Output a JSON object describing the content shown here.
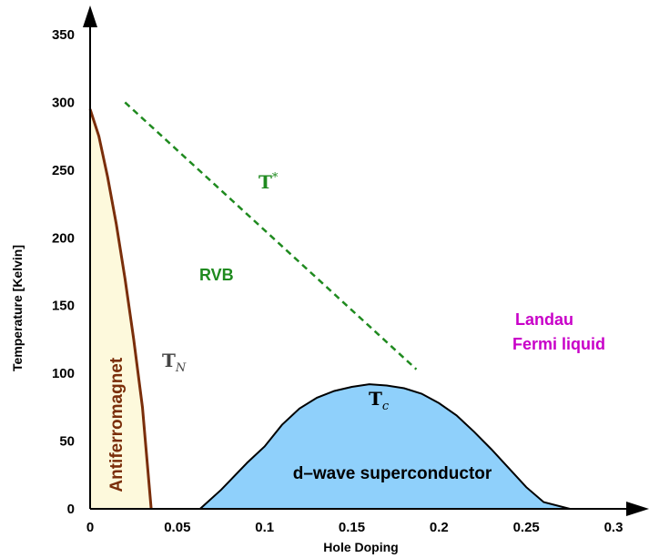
{
  "chart_data": {
    "type": "area",
    "xlabel": "Hole Doping",
    "ylabel": "Temperature [Kelvin]",
    "xlim": [
      0,
      0.3
    ],
    "ylim": [
      0,
      350
    ],
    "x_ticks": [
      "0",
      "0.05",
      "0.1",
      "0.15",
      "0.2",
      "0.25",
      "0.3"
    ],
    "x_tick_values": [
      0,
      0.05,
      0.1,
      0.15,
      0.2,
      0.25,
      0.3
    ],
    "y_ticks": [
      "0",
      "50",
      "100",
      "150",
      "200",
      "250",
      "300",
      "350"
    ],
    "y_tick_values": [
      0,
      50,
      100,
      150,
      200,
      250,
      300,
      350
    ],
    "grid": false,
    "regions": {
      "antiferromagnet": {
        "label": "Antiferromagnet",
        "fill": "#fdf9dc",
        "line_color": "#7a2e0a",
        "boundary": [
          [
            0,
            295
          ],
          [
            0.005,
            275
          ],
          [
            0.01,
            245
          ],
          [
            0.015,
            210
          ],
          [
            0.02,
            170
          ],
          [
            0.025,
            125
          ],
          [
            0.03,
            75
          ],
          [
            0.035,
            0
          ]
        ]
      },
      "superconductor": {
        "label": "d–wave superconductor",
        "fill": "#8fd0fb",
        "line_color": "#000000",
        "boundary": [
          [
            0.063,
            0
          ],
          [
            0.075,
            14
          ],
          [
            0.09,
            34
          ],
          [
            0.1,
            46
          ],
          [
            0.11,
            62
          ],
          [
            0.12,
            74
          ],
          [
            0.13,
            82
          ],
          [
            0.14,
            87
          ],
          [
            0.15,
            90
          ],
          [
            0.16,
            92
          ],
          [
            0.17,
            91
          ],
          [
            0.18,
            89
          ],
          [
            0.19,
            85
          ],
          [
            0.2,
            78
          ],
          [
            0.21,
            69
          ],
          [
            0.22,
            57
          ],
          [
            0.23,
            44
          ],
          [
            0.24,
            30
          ],
          [
            0.25,
            16
          ],
          [
            0.26,
            5
          ],
          [
            0.275,
            0
          ]
        ]
      }
    },
    "lines": {
      "t_star": {
        "label": "T*",
        "color": "#1f8a1f",
        "style": "dashed",
        "points": [
          [
            0.02,
            300
          ],
          [
            0.187,
            103
          ]
        ]
      }
    },
    "annotations": {
      "tn": "T",
      "tn_sub": "N",
      "tc": "T",
      "tc_sub": "c",
      "tstar": "T",
      "tstar_sup": "*",
      "rvb": "RVB",
      "landau_line1": "Landau",
      "landau_line2": "Fermi liquid"
    },
    "colors": {
      "tstar_label": "#1f8a1f",
      "rvb": "#1f8a1f",
      "landau": "#c800c8",
      "antiferromagnet_text": "#7a2e0a",
      "tn_label": "#444444",
      "tc_label": "#000000"
    }
  }
}
